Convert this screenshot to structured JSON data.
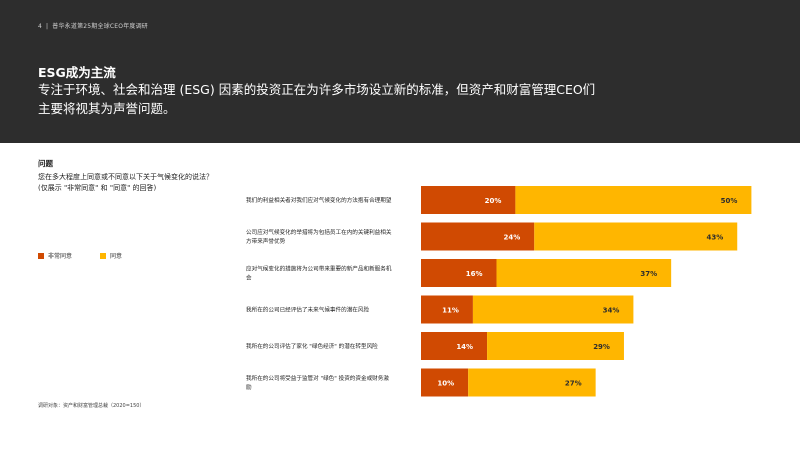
{
  "header": {
    "page_number": "4",
    "separator": "|",
    "report_name": "普华永道第25期全球CEO年度调研",
    "title": "ESG成为主流",
    "subtitle": "专注于环境、社会和治理 (ESG) 因素的投资正在为许多市场设立新的标准，但资产和财富管理CEO们主要将视其为声誉问题。"
  },
  "question": {
    "label": "问题",
    "text": "您在多大程度上同意或不同意以下关于气候变化的说法？(仅展示 \"非常同意\" 和 \"同意\" 的回答)"
  },
  "footnote": "调研对象：资产和财富管理总裁（2020=150）",
  "colors": {
    "header_bg": "#2d2d2d",
    "strongly_agree": "#d04a02",
    "agree": "#ffb600"
  },
  "chart_data": {
    "type": "bar",
    "orientation": "horizontal",
    "stacked": true,
    "value_suffix": "%",
    "categories": [
      "我们的利益相关者对我们应对气候变化的方法抱有合理期望",
      "公司应对气候变化的举措将为包括员工在内的关键利益相关方带来声誉优势",
      "应对气候变化的措施将为公司带来重要的新产品和新服务机会",
      "我所在的公司已经评估了未来气候事件的潜在风险",
      "我所在的公司评估了家化 \"绿色经济\" 的潜在转型风险",
      "我所在的公司将受益于监管对 \"绿色\" 投资的资金或财务激励"
    ],
    "series": [
      {
        "name": "非常同意",
        "color": "#d04a02",
        "values": [
          20,
          24,
          16,
          11,
          14,
          10
        ]
      },
      {
        "name": "同意",
        "color": "#ffb600",
        "values": [
          50,
          43,
          37,
          34,
          29,
          27
        ]
      }
    ],
    "legend_position": "left",
    "grid": false
  }
}
